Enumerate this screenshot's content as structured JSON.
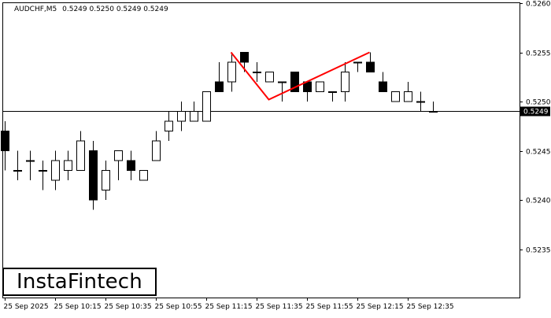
{
  "header": {
    "symbol": "AUDCHF,M5",
    "ohlc": "0.5249 0.5250 0.5249 0.5249"
  },
  "logo": {
    "text": "InstaFintech"
  },
  "colors": {
    "pattern": "#ff0000",
    "bull_body": "#ffffff",
    "bear_body": "#000000",
    "grid": "#000000"
  },
  "chart_data": {
    "type": "candlestick",
    "symbol": "AUDCHF",
    "timeframe": "M5",
    "ylim": [
      0.523,
      0.526
    ],
    "yticks": [
      0.5235,
      0.524,
      0.5245,
      0.525,
      0.5255,
      0.526
    ],
    "ytick_labels": [
      "0.5235",
      "0.5240",
      "0.5245",
      "0.5250",
      "0.5255",
      "0.5260"
    ],
    "current_price": 0.5249,
    "current_price_label": "0.5249",
    "xtick_labels": [
      {
        "index": 0,
        "label": "25 Sep 2025"
      },
      {
        "index": 4,
        "label": "25 Sep 10:15"
      },
      {
        "index": 8,
        "label": "25 Sep 10:35"
      },
      {
        "index": 12,
        "label": "25 Sep 10:55"
      },
      {
        "index": 16,
        "label": "25 Sep 11:15"
      },
      {
        "index": 20,
        "label": "25 Sep 11:35"
      },
      {
        "index": 24,
        "label": "25 Sep 11:55"
      },
      {
        "index": 28,
        "label": "25 Sep 12:15"
      },
      {
        "index": 32,
        "label": "25 Sep 12:35"
      }
    ],
    "candles": [
      {
        "o": 0.5247,
        "h": 0.5248,
        "l": 0.5243,
        "c": 0.5245
      },
      {
        "o": 0.5243,
        "h": 0.5245,
        "l": 0.5242,
        "c": 0.5243
      },
      {
        "o": 0.5244,
        "h": 0.5245,
        "l": 0.5242,
        "c": 0.5244
      },
      {
        "o": 0.5243,
        "h": 0.5244,
        "l": 0.5241,
        "c": 0.5243
      },
      {
        "o": 0.5242,
        "h": 0.5245,
        "l": 0.5241,
        "c": 0.5244
      },
      {
        "o": 0.5243,
        "h": 0.5245,
        "l": 0.5242,
        "c": 0.5244
      },
      {
        "o": 0.5243,
        "h": 0.5247,
        "l": 0.5243,
        "c": 0.5246
      },
      {
        "o": 0.5245,
        "h": 0.5246,
        "l": 0.5239,
        "c": 0.524
      },
      {
        "o": 0.5241,
        "h": 0.5244,
        "l": 0.524,
        "c": 0.5243
      },
      {
        "o": 0.5244,
        "h": 0.5245,
        "l": 0.5242,
        "c": 0.5245
      },
      {
        "o": 0.5244,
        "h": 0.5245,
        "l": 0.5242,
        "c": 0.5243
      },
      {
        "o": 0.5242,
        "h": 0.5243,
        "l": 0.5242,
        "c": 0.5243
      },
      {
        "o": 0.5244,
        "h": 0.5247,
        "l": 0.5244,
        "c": 0.5246
      },
      {
        "o": 0.5247,
        "h": 0.5249,
        "l": 0.5246,
        "c": 0.5248
      },
      {
        "o": 0.5248,
        "h": 0.525,
        "l": 0.5247,
        "c": 0.5249
      },
      {
        "o": 0.5248,
        "h": 0.525,
        "l": 0.5248,
        "c": 0.5249
      },
      {
        "o": 0.5248,
        "h": 0.5251,
        "l": 0.5248,
        "c": 0.5251
      },
      {
        "o": 0.5252,
        "h": 0.5254,
        "l": 0.5251,
        "c": 0.5251
      },
      {
        "o": 0.5252,
        "h": 0.5255,
        "l": 0.5251,
        "c": 0.5254
      },
      {
        "o": 0.5255,
        "h": 0.5255,
        "l": 0.5253,
        "c": 0.5254
      },
      {
        "o": 0.5253,
        "h": 0.5254,
        "l": 0.5252,
        "c": 0.5253
      },
      {
        "o": 0.5252,
        "h": 0.5253,
        "l": 0.5252,
        "c": 0.5253
      },
      {
        "o": 0.5252,
        "h": 0.5252,
        "l": 0.525,
        "c": 0.5252
      },
      {
        "o": 0.5253,
        "h": 0.5253,
        "l": 0.5251,
        "c": 0.5251
      },
      {
        "o": 0.5252,
        "h": 0.5252,
        "l": 0.525,
        "c": 0.5251
      },
      {
        "o": 0.5251,
        "h": 0.5252,
        "l": 0.5251,
        "c": 0.5252
      },
      {
        "o": 0.5251,
        "h": 0.5251,
        "l": 0.525,
        "c": 0.5251
      },
      {
        "o": 0.5251,
        "h": 0.5254,
        "l": 0.525,
        "c": 0.5253
      },
      {
        "o": 0.5254,
        "h": 0.5254,
        "l": 0.5253,
        "c": 0.5254
      },
      {
        "o": 0.5254,
        "h": 0.5255,
        "l": 0.5253,
        "c": 0.5253
      },
      {
        "o": 0.5252,
        "h": 0.5253,
        "l": 0.5251,
        "c": 0.5251
      },
      {
        "o": 0.525,
        "h": 0.5251,
        "l": 0.525,
        "c": 0.5251
      },
      {
        "o": 0.525,
        "h": 0.5252,
        "l": 0.525,
        "c": 0.5251
      },
      {
        "o": 0.525,
        "h": 0.5251,
        "l": 0.5249,
        "c": 0.525
      },
      {
        "o": 0.5249,
        "h": 0.525,
        "l": 0.5249,
        "c": 0.5249
      }
    ],
    "pattern": {
      "name": "Double Top",
      "points": [
        {
          "index": 18,
          "price": 0.5255
        },
        {
          "index": 21,
          "price": 0.52502
        },
        {
          "index": 29,
          "price": 0.5255
        }
      ]
    }
  }
}
